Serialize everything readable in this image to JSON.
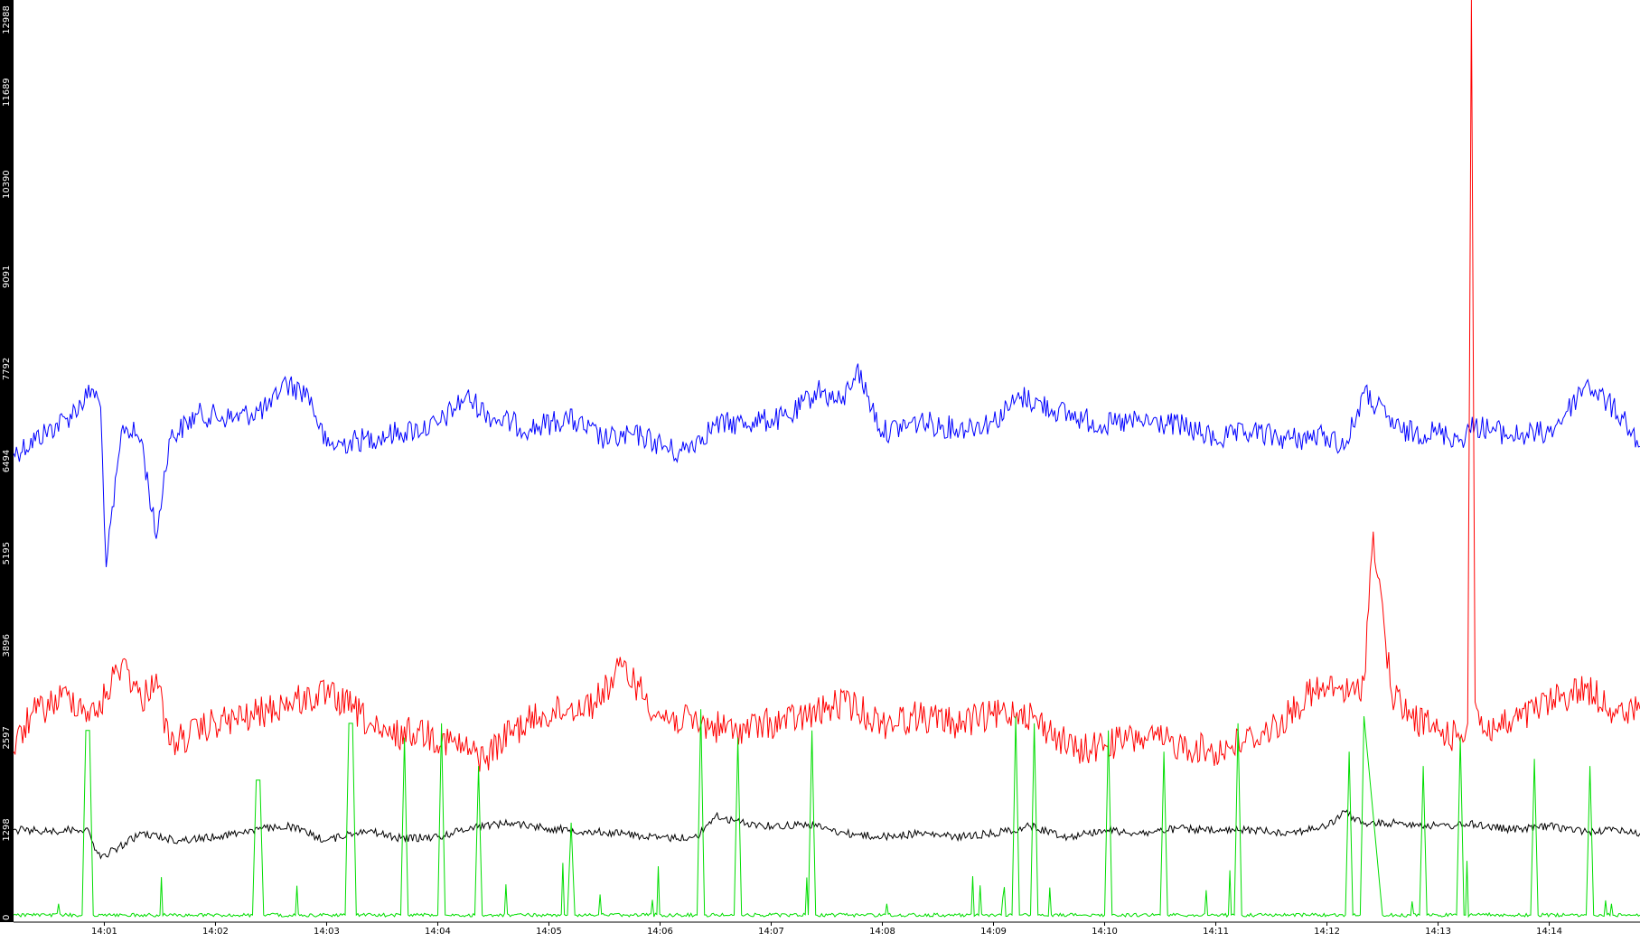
{
  "chart_data": {
    "type": "line",
    "title": "",
    "xlabel": "",
    "ylabel": "",
    "grid": false,
    "legend": "none",
    "xlim": [
      "14:00:11",
      "14:14:49"
    ],
    "ylim": [
      0,
      12988
    ],
    "y_ticks": [
      "0",
      "1298",
      "2597",
      "3896",
      "5195",
      "6494",
      "7792",
      "9091",
      "10390",
      "11689",
      "12988"
    ],
    "x_ticks": [
      "14:01",
      "14:02",
      "14:03",
      "14:04",
      "14:05",
      "14:06",
      "14:07",
      "14:08",
      "14:09",
      "14:10",
      "14:11",
      "14:12",
      "14:13",
      "14:14"
    ],
    "series": [
      {
        "color": "#0000ff",
        "x": [
          "14:00:11",
          "14:00:40",
          "14:00:54",
          "14:00:58",
          "14:01:01",
          "14:01:10",
          "14:01:20",
          "14:01:28",
          "14:01:35",
          "14:01:50",
          "14:02:10",
          "14:02:30",
          "14:02:36",
          "14:02:50",
          "14:03:00",
          "14:03:20",
          "14:03:40",
          "14:04:00",
          "14:04:15",
          "14:04:30",
          "14:04:50",
          "14:05:10",
          "14:05:30",
          "14:05:50",
          "14:06:10",
          "14:06:30",
          "14:06:50",
          "14:07:10",
          "14:07:25",
          "14:07:38",
          "14:07:46",
          "14:08:00",
          "14:08:20",
          "14:08:40",
          "14:09:00",
          "14:09:15",
          "14:09:40",
          "14:10:00",
          "14:10:20",
          "14:10:40",
          "14:11:00",
          "14:11:20",
          "14:11:40",
          "14:12:00",
          "14:12:10",
          "14:12:20",
          "14:12:40",
          "14:13:00",
          "14:13:12",
          "14:13:20",
          "14:13:40",
          "14:14:00",
          "14:14:10",
          "14:14:20",
          "14:14:40",
          "14:14:49"
        ],
        "values": [
          6600,
          7100,
          7500,
          7250,
          5000,
          7000,
          6800,
          5400,
          6800,
          7150,
          7100,
          7250,
          7600,
          7450,
          6700,
          6800,
          6900,
          7000,
          7400,
          7100,
          6950,
          7100,
          6800,
          6850,
          6600,
          7000,
          7050,
          7100,
          7500,
          7300,
          7800,
          6900,
          7050,
          6950,
          7050,
          7400,
          7150,
          7000,
          7050,
          7000,
          6800,
          6900,
          6800,
          6850,
          6700,
          7450,
          6900,
          6900,
          6800,
          7000,
          6850,
          6900,
          7200,
          7600,
          7100,
          6700
        ]
      },
      {
        "color": "#ff0000",
        "x": [
          "14:00:11",
          "14:00:20",
          "14:00:40",
          "14:00:55",
          "14:01:10",
          "14:01:20",
          "14:01:28",
          "14:01:35",
          "14:02:00",
          "14:02:20",
          "14:02:40",
          "14:03:00",
          "14:03:15",
          "14:03:30",
          "14:03:50",
          "14:04:10",
          "14:04:25",
          "14:04:40",
          "14:04:55",
          "14:05:10",
          "14:05:25",
          "14:05:40",
          "14:06:00",
          "14:06:20",
          "14:06:40",
          "14:07:00",
          "14:07:20",
          "14:07:40",
          "14:08:00",
          "14:08:20",
          "14:08:40",
          "14:09:00",
          "14:09:15",
          "14:09:30",
          "14:09:45",
          "14:10:00",
          "14:10:20",
          "14:10:40",
          "14:11:00",
          "14:11:20",
          "14:11:35",
          "14:11:50",
          "14:12:05",
          "14:12:15",
          "14:12:20",
          "14:12:25",
          "14:12:35",
          "14:12:45",
          "14:13:00",
          "14:13:10",
          "14:13:16",
          "14:13:18",
          "14:13:20",
          "14:13:25",
          "14:13:40",
          "14:14:00",
          "14:14:20",
          "14:14:40",
          "14:14:49"
        ],
        "values": [
          2400,
          2900,
          3200,
          2900,
          3700,
          3100,
          3500,
          2500,
          2800,
          2900,
          3100,
          3200,
          3000,
          2600,
          2700,
          2500,
          2300,
          2700,
          2900,
          3000,
          3100,
          3600,
          2900,
          2800,
          2700,
          2800,
          2900,
          3100,
          2800,
          2900,
          2800,
          2900,
          3000,
          2700,
          2400,
          2500,
          2600,
          2500,
          2400,
          2600,
          2800,
          3200,
          3300,
          3200,
          3400,
          5500,
          3200,
          2900,
          2700,
          2600,
          2800,
          12988,
          3100,
          2700,
          2800,
          3100,
          3300,
          2900,
          3000
        ]
      },
      {
        "color": "#000000",
        "x": [
          "14:00:11",
          "14:00:30",
          "14:00:50",
          "14:00:58",
          "14:01:20",
          "14:01:40",
          "14:02:00",
          "14:02:20",
          "14:02:40",
          "14:03:00",
          "14:03:20",
          "14:03:40",
          "14:04:00",
          "14:04:20",
          "14:04:40",
          "14:05:00",
          "14:05:20",
          "14:05:40",
          "14:06:00",
          "14:06:20",
          "14:06:30",
          "14:06:40",
          "14:07:00",
          "14:07:20",
          "14:07:40",
          "14:08:00",
          "14:08:20",
          "14:08:40",
          "14:09:00",
          "14:09:20",
          "14:09:40",
          "14:10:00",
          "14:10:20",
          "14:10:40",
          "14:11:00",
          "14:11:20",
          "14:11:40",
          "14:12:00",
          "14:12:10",
          "14:12:20",
          "14:12:40",
          "14:13:00",
          "14:13:20",
          "14:13:40",
          "14:14:00",
          "14:14:20",
          "14:14:40",
          "14:14:49"
        ],
        "values": [
          1300,
          1280,
          1320,
          900,
          1250,
          1150,
          1200,
          1300,
          1350,
          1150,
          1300,
          1180,
          1200,
          1350,
          1400,
          1320,
          1280,
          1250,
          1180,
          1200,
          1500,
          1420,
          1350,
          1380,
          1250,
          1200,
          1250,
          1200,
          1250,
          1350,
          1200,
          1300,
          1250,
          1320,
          1280,
          1300,
          1260,
          1350,
          1550,
          1380,
          1400,
          1350,
          1380,
          1300,
          1350,
          1280,
          1300,
          1250
        ]
      },
      {
        "color": "#00dd00",
        "x": [
          "14:00:11",
          "14:00:40",
          "14:00:48",
          "14:00:50",
          "14:00:52",
          "14:00:54",
          "14:01:10",
          "14:01:20",
          "14:01:30",
          "14:02:20",
          "14:02:22",
          "14:02:24",
          "14:02:26",
          "14:02:40",
          "14:03:10",
          "14:03:12",
          "14:03:14",
          "14:03:16",
          "14:03:30",
          "14:03:40",
          "14:03:42",
          "14:03:44",
          "14:04:00",
          "14:04:02",
          "14:04:04",
          "14:04:20",
          "14:04:22",
          "14:04:24",
          "14:04:40",
          "14:05:00",
          "14:05:10",
          "14:05:12",
          "14:05:14",
          "14:05:30",
          "14:06:10",
          "14:06:20",
          "14:06:22",
          "14:06:24",
          "14:06:40",
          "14:06:42",
          "14:06:44",
          "14:07:00",
          "14:07:20",
          "14:07:22",
          "14:07:24",
          "14:07:40",
          "14:08:00",
          "14:08:20",
          "14:08:40",
          "14:09:00",
          "14:09:10",
          "14:09:12",
          "14:09:14",
          "14:09:20",
          "14:09:22",
          "14:09:24",
          "14:09:40",
          "14:09:50",
          "14:10:00",
          "14:10:02",
          "14:10:04",
          "14:10:20",
          "14:10:30",
          "14:10:32",
          "14:10:34",
          "14:10:50",
          "14:11:10",
          "14:11:12",
          "14:11:14",
          "14:11:30",
          "14:12:00",
          "14:12:10",
          "14:12:12",
          "14:12:14",
          "14:12:18",
          "14:12:20",
          "14:12:30",
          "14:12:50",
          "14:12:52",
          "14:12:54",
          "14:13:10",
          "14:13:12",
          "14:13:14",
          "14:13:30",
          "14:13:50",
          "14:13:52",
          "14:13:54",
          "14:14:10",
          "14:14:20",
          "14:14:22",
          "14:14:24",
          "14:14:40",
          "14:14:49"
        ],
        "values": [
          100,
          100,
          100,
          2700,
          2700,
          100,
          100,
          100,
          100,
          100,
          2000,
          2000,
          100,
          100,
          100,
          2800,
          2800,
          100,
          100,
          100,
          2600,
          100,
          100,
          2800,
          100,
          100,
          2200,
          100,
          100,
          100,
          100,
          1400,
          100,
          100,
          100,
          100,
          3000,
          100,
          100,
          2600,
          100,
          100,
          100,
          2700,
          100,
          100,
          100,
          100,
          100,
          100,
          100,
          2900,
          100,
          100,
          2800,
          100,
          100,
          100,
          100,
          2700,
          100,
          100,
          100,
          2400,
          100,
          100,
          100,
          2800,
          100,
          100,
          100,
          100,
          2400,
          100,
          100,
          2900,
          100,
          100,
          2200,
          100,
          100,
          2600,
          100,
          100,
          100,
          2300,
          100,
          100,
          100,
          2200,
          100,
          100,
          100
        ]
      }
    ]
  }
}
